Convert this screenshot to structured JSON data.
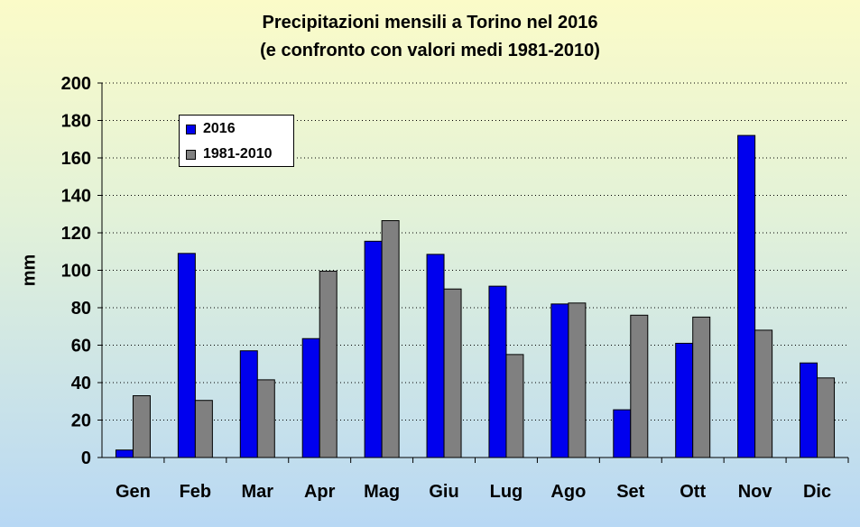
{
  "chart_data": {
    "type": "bar",
    "title": "Precipitazioni mensili a Torino nel 2016",
    "subtitle": "(e confronto con valori medi 1981-2010)",
    "ylabel": "mm",
    "xlabel": "",
    "ylim": [
      0,
      200
    ],
    "yticks": [
      "0",
      "20",
      "40",
      "60",
      "80",
      "100",
      "120",
      "140",
      "160",
      "180",
      "200"
    ],
    "grid": true,
    "legend_position": "top-left",
    "categories": [
      "Gen",
      "Feb",
      "Mar",
      "Apr",
      "Mag",
      "Giu",
      "Lug",
      "Ago",
      "Set",
      "Ott",
      "Nov",
      "Dic"
    ],
    "series": [
      {
        "name": "2016",
        "color": "#0000ee",
        "values": [
          4,
          109,
          57,
          63.5,
          115.5,
          108.5,
          91.5,
          82,
          25.5,
          61,
          172,
          50.5
        ]
      },
      {
        "name": "1981-2010",
        "color": "#808080",
        "values": [
          33,
          30.5,
          41.5,
          99.5,
          126.5,
          90,
          55,
          82.5,
          76,
          75,
          68,
          42.5
        ]
      }
    ]
  }
}
